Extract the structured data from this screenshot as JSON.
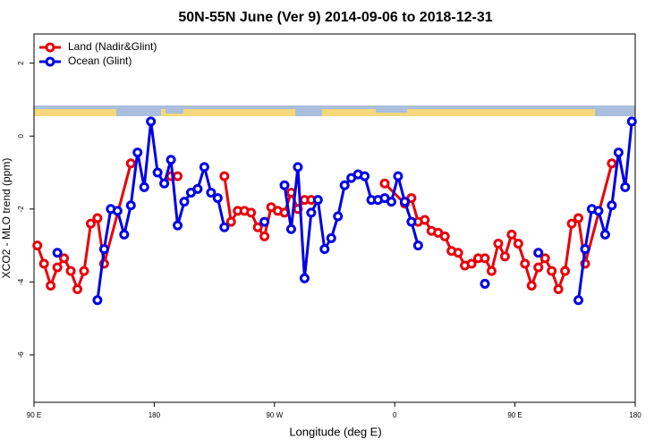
{
  "chart_data": {
    "type": "line",
    "title": "50N-55N June (Ver 9)   2014-09-06 to 2018-12-31",
    "xlabel": "Longitude (deg E)",
    "ylabel": "XCO2 - MLO trend (ppm)",
    "xlim": [
      90,
      540
    ],
    "ylim": [
      -7.3,
      2.8
    ],
    "xticks": [
      {
        "value": 90,
        "label": "90 E"
      },
      {
        "value": 180,
        "label": "180"
      },
      {
        "value": 270,
        "label": "90 W"
      },
      {
        "value": 360,
        "label": "0"
      },
      {
        "value": 450,
        "label": "90 E"
      },
      {
        "value": 540,
        "label": "180"
      }
    ],
    "yticks": [
      -6,
      -4,
      -2,
      0,
      2
    ],
    "legend": "top-left",
    "series": [
      {
        "name": "Land (Nadir&Glint)",
        "color": "#e8000b",
        "x": [
          92.5,
          97.5,
          102.5,
          107.5,
          112.5,
          117.5,
          122.5,
          127.5,
          132.5,
          137.5,
          142.5,
          162.5,
          null,
          192.5,
          197.5,
          null,
          232.5,
          237.5,
          242.5,
          247.5,
          252.5,
          257.5,
          262.5,
          267.5,
          272.5,
          277.5,
          282.5,
          287.5,
          292.5,
          297.5,
          null,
          352.5,
          367.5,
          372.5,
          377.5,
          382.5,
          387.5,
          392.5,
          397.5,
          402.5,
          407.5,
          412.5,
          417.5,
          422.5,
          427.5,
          432.5,
          437.5,
          442.5,
          447.5,
          452.5,
          457.5,
          462.5,
          467.5,
          472.5,
          477.5,
          482.5,
          487.5,
          492.5,
          497.5,
          502.5,
          522.5
        ],
        "values": [
          -3.0,
          -3.5,
          -4.1,
          -3.6,
          -3.35,
          -3.7,
          -4.2,
          -3.7,
          -2.4,
          -2.25,
          -3.5,
          -0.75,
          null,
          -1.1,
          -1.1,
          null,
          -1.1,
          -2.35,
          -2.05,
          -2.05,
          -2.1,
          -2.5,
          -2.75,
          -1.95,
          -2.05,
          -2.1,
          -1.55,
          -2.0,
          -1.75,
          -1.75,
          null,
          -1.3,
          -1.85,
          -1.7,
          -2.35,
          -2.3,
          -2.6,
          -2.65,
          -2.75,
          -3.15,
          -3.2,
          -3.55,
          -3.5,
          -3.35,
          -3.35,
          -3.7,
          -2.95,
          -3.3,
          -2.7,
          -2.95,
          -3.5,
          -4.1,
          -3.6,
          -3.35,
          -3.7,
          -4.2,
          -3.7,
          -2.4,
          -2.25,
          -3.5,
          -0.75
        ]
      },
      {
        "name": "Ocean (Glint)",
        "color": "#0000e6",
        "x": [
          107.5,
          null,
          137.5,
          142.5,
          147.5,
          152.5,
          157.5,
          162.5,
          167.5,
          172.5,
          177.5,
          182.5,
          187.5,
          192.5,
          197.5,
          202.5,
          207.5,
          212.5,
          217.5,
          222.5,
          227.5,
          232.5,
          null,
          262.5,
          null,
          277.5,
          282.5,
          287.5,
          292.5,
          297.5,
          302.5,
          307.5,
          312.5,
          317.5,
          322.5,
          327.5,
          332.5,
          337.5,
          342.5,
          347.5,
          352.5,
          357.5,
          362.5,
          367.5,
          372.5,
          377.5,
          null,
          427.5,
          null,
          467.5,
          null,
          497.5,
          502.5,
          507.5,
          512.5,
          517.5,
          522.5,
          527.5,
          532.5,
          537.5
        ],
        "values": [
          -3.2,
          null,
          -4.5,
          -3.1,
          -2.0,
          -2.05,
          -2.7,
          -1.9,
          -0.45,
          -1.4,
          0.4,
          -1.0,
          -1.3,
          -0.65,
          -2.45,
          -1.8,
          -1.55,
          -1.45,
          -0.85,
          -1.55,
          -1.7,
          -2.5,
          null,
          -2.35,
          null,
          -1.35,
          -2.55,
          -0.85,
          -3.9,
          -2.1,
          -1.75,
          -3.1,
          -2.8,
          -2.2,
          -1.35,
          -1.15,
          -1.05,
          -1.1,
          -1.75,
          -1.75,
          -1.7,
          -1.8,
          -1.1,
          -1.8,
          -2.35,
          -3.0,
          null,
          -4.05,
          null,
          -3.2,
          null,
          -4.5,
          -3.1,
          -2.0,
          -2.05,
          -2.7,
          -1.9,
          -0.45,
          -1.4,
          0.4
        ]
      }
    ]
  }
}
